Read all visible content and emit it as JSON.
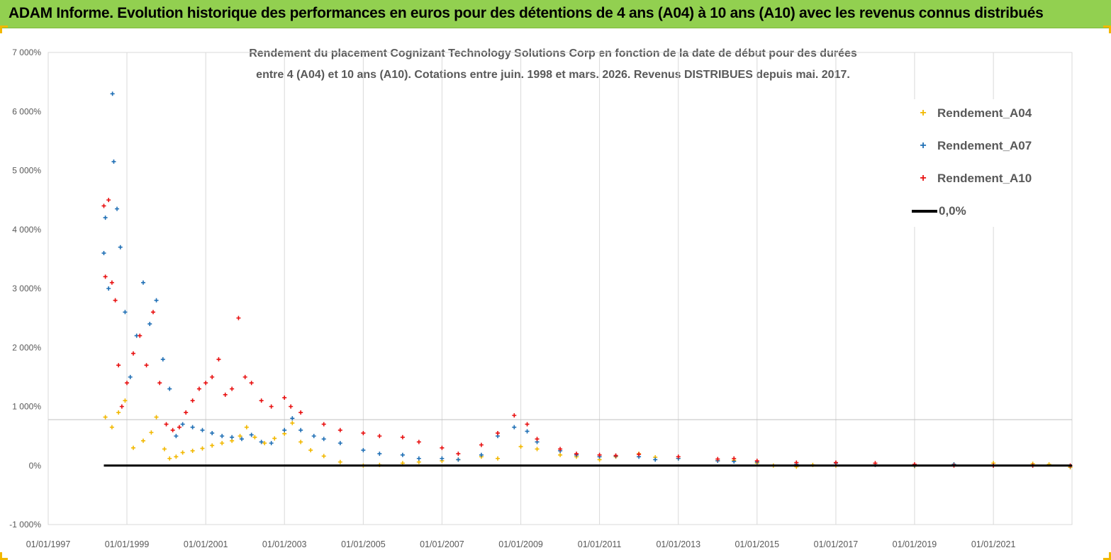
{
  "banner": {
    "title": "ADAM Informe. Evolution historique des performances en euros pour des détentions de 4 ans (A04) à 10 ans (A10) avec les revenus connus distribués"
  },
  "colors": {
    "banner": "#92d050",
    "a04": "#f2b800",
    "a07": "#1f6fb5",
    "a10": "#e81010",
    "zero": "#000000",
    "accent": "#f2b800"
  },
  "chart_data": {
    "type": "scatter",
    "title_line1": "Rendement du placement Cognizant Technology Solutions Corp en fonction de la date de début pour des durées",
    "title_line2": "entre 4 (A04) et 10 ans (A10). Cotations entre juin. 1998 et mars. 2026. Revenus DISTRIBUES depuis mai. 2017.",
    "xlabel": "",
    "ylabel": "",
    "x_range": [
      "1997-01-01",
      "2022-12-31"
    ],
    "y_range": [
      -1000,
      7000
    ],
    "x_ticks": [
      "01/01/1997",
      "01/01/1999",
      "01/01/2001",
      "01/01/2003",
      "01/01/2005",
      "01/01/2007",
      "01/01/2009",
      "01/01/2011",
      "01/01/2013",
      "01/01/2015",
      "01/01/2017",
      "01/01/2019",
      "01/01/2021"
    ],
    "y_ticks": [
      {
        "value": 7000,
        "label": "7 000%"
      },
      {
        "value": 6000,
        "label": "6 000%"
      },
      {
        "value": 5000,
        "label": "5 000%"
      },
      {
        "value": 4000,
        "label": "4 000%"
      },
      {
        "value": 3000,
        "label": "3 000%"
      },
      {
        "value": 2000,
        "label": "2 000%"
      },
      {
        "value": 1000,
        "label": "1 000%"
      },
      {
        "value": 0,
        "label": "0%"
      },
      {
        "value": -1000,
        "label": "-1 000%"
      }
    ],
    "grid": "vertical",
    "legend_position": "top-right",
    "series": [
      {
        "name": "Rendement_A04",
        "color": "#f2b800",
        "marker": "+",
        "x": [
          "1998-06-15",
          "1998-08-15",
          "1998-10-15",
          "1998-12-15",
          "1999-03-01",
          "1999-06-01",
          "1999-08-15",
          "1999-10-01",
          "1999-12-15",
          "2000-02-01",
          "2000-04-01",
          "2000-06-01",
          "2000-09-01",
          "2000-12-01",
          "2001-03-01",
          "2001-06-01",
          "2001-09-01",
          "2001-11-15",
          "2002-01-15",
          "2002-04-01",
          "2002-07-01",
          "2002-10-01",
          "2003-01-01",
          "2003-03-15",
          "2003-06-01",
          "2003-09-01",
          "2004-01-01",
          "2004-06-01",
          "2005-01-01",
          "2005-06-01",
          "2006-01-01",
          "2006-06-01",
          "2007-01-01",
          "2007-06-01",
          "2008-01-01",
          "2008-06-01",
          "2009-01-01",
          "2009-06-01",
          "2010-01-01",
          "2010-06-01",
          "2011-01-01",
          "2011-06-01",
          "2012-01-01",
          "2012-06-01",
          "2013-01-01",
          "2014-01-01",
          "2014-06-01",
          "2015-01-01",
          "2015-06-01",
          "2016-01-01",
          "2016-06-01",
          "2017-01-01",
          "2018-01-01",
          "2019-01-01",
          "2020-01-01",
          "2021-01-01",
          "2022-01-01",
          "2022-06-01",
          "2022-12-15"
        ],
        "y": [
          820,
          650,
          900,
          1100,
          300,
          420,
          560,
          820,
          280,
          120,
          150,
          220,
          250,
          290,
          340,
          380,
          420,
          500,
          650,
          480,
          380,
          460,
          540,
          720,
          400,
          260,
          160,
          60,
          0,
          10,
          40,
          60,
          80,
          100,
          150,
          120,
          320,
          280,
          180,
          150,
          100,
          150,
          200,
          140,
          120,
          80,
          90,
          40,
          0,
          -20,
          10,
          0,
          10,
          -10,
          20,
          40,
          30,
          20,
          -30
        ]
      },
      {
        "name": "Rendement_A07",
        "color": "#1f6fb5",
        "marker": "+",
        "x": [
          "1998-06-01",
          "1998-06-15",
          "1998-07-15",
          "1998-08-20",
          "1998-09-01",
          "1998-10-01",
          "1998-11-01",
          "1998-12-15",
          "1999-02-01",
          "1999-04-01",
          "1999-06-01",
          "1999-08-01",
          "1999-10-01",
          "1999-12-01",
          "2000-02-01",
          "2000-04-01",
          "2000-06-01",
          "2000-09-01",
          "2000-12-01",
          "2001-03-01",
          "2001-06-01",
          "2001-09-01",
          "2001-12-01",
          "2002-03-01",
          "2002-06-01",
          "2002-09-01",
          "2003-01-01",
          "2003-03-15",
          "2003-06-01",
          "2003-10-01",
          "2004-01-01",
          "2004-06-01",
          "2005-01-01",
          "2005-06-01",
          "2006-01-01",
          "2006-06-01",
          "2007-01-01",
          "2007-06-01",
          "2008-01-01",
          "2008-06-01",
          "2008-11-01",
          "2009-03-01",
          "2009-06-01",
          "2010-01-01",
          "2010-06-01",
          "2011-01-01",
          "2011-06-01",
          "2012-01-01",
          "2012-06-01",
          "2013-01-01",
          "2014-01-01",
          "2014-06-01",
          "2015-01-01",
          "2016-01-01",
          "2017-01-01",
          "2018-01-01",
          "2019-01-01",
          "2020-01-01",
          "2021-01-01",
          "2022-01-01",
          "2022-12-15"
        ],
        "y": [
          3600,
          4200,
          3000,
          6300,
          5150,
          4350,
          3700,
          2600,
          1500,
          2200,
          3100,
          2400,
          2800,
          1800,
          1300,
          500,
          700,
          650,
          600,
          550,
          500,
          480,
          450,
          520,
          400,
          380,
          600,
          800,
          600,
          500,
          450,
          380,
          260,
          200,
          180,
          120,
          120,
          100,
          180,
          500,
          650,
          580,
          400,
          250,
          180,
          150,
          160,
          150,
          100,
          120,
          80,
          70,
          60,
          20,
          40,
          10,
          0,
          20,
          0,
          0,
          -10
        ]
      },
      {
        "name": "Rendement_A10",
        "color": "#e81010",
        "marker": "+",
        "x": [
          "1998-06-01",
          "1998-06-15",
          "1998-07-15",
          "1998-08-15",
          "1998-09-15",
          "1998-10-15",
          "1998-11-15",
          "1999-01-01",
          "1999-03-01",
          "1999-05-01",
          "1999-07-01",
          "1999-09-01",
          "1999-11-01",
          "2000-01-01",
          "2000-03-01",
          "2000-05-01",
          "2000-07-01",
          "2000-09-01",
          "2000-11-01",
          "2001-01-01",
          "2001-03-01",
          "2001-05-01",
          "2001-07-01",
          "2001-09-01",
          "2001-11-01",
          "2002-01-01",
          "2002-03-01",
          "2002-06-01",
          "2002-09-01",
          "2003-01-01",
          "2003-03-01",
          "2003-06-01",
          "2004-01-01",
          "2004-06-01",
          "2005-01-01",
          "2005-06-01",
          "2006-01-01",
          "2006-06-01",
          "2007-01-01",
          "2007-06-01",
          "2008-01-01",
          "2008-06-01",
          "2008-11-01",
          "2009-03-01",
          "2009-06-01",
          "2010-01-01",
          "2010-06-01",
          "2011-01-01",
          "2011-06-01",
          "2012-01-01",
          "2013-01-01",
          "2014-01-01",
          "2014-06-01",
          "2015-01-01",
          "2016-01-01",
          "2017-01-01",
          "2018-01-01",
          "2019-01-01",
          "2020-01-01",
          "2021-01-01",
          "2022-01-01",
          "2022-12-15"
        ],
        "y": [
          4400,
          3200,
          4500,
          3100,
          2800,
          1700,
          1000,
          1400,
          1900,
          2200,
          1700,
          2600,
          1400,
          700,
          600,
          650,
          900,
          1100,
          1300,
          1400,
          1500,
          1800,
          1200,
          1300,
          2500,
          1500,
          1400,
          1100,
          1000,
          1150,
          1000,
          900,
          700,
          600,
          550,
          500,
          480,
          400,
          300,
          200,
          350,
          550,
          850,
          700,
          450,
          280,
          200,
          180,
          170,
          190,
          150,
          110,
          120,
          80,
          50,
          50,
          40,
          20,
          0,
          0,
          0,
          0
        ]
      },
      {
        "name": "0,0%",
        "color": "#000000",
        "marker": "line",
        "x": [
          "1998-06-01",
          "2022-12-31"
        ],
        "y": [
          0,
          0
        ]
      }
    ]
  }
}
